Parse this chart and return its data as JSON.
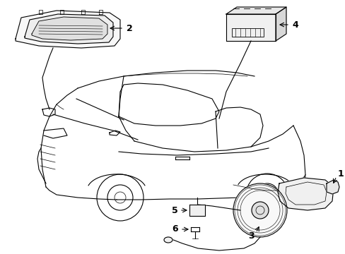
{
  "background_color": "#ffffff",
  "line_color": "#000000",
  "fig_width": 4.89,
  "fig_height": 3.6,
  "dpi": 100,
  "label_fontsize": 9,
  "label_fontweight": "bold"
}
